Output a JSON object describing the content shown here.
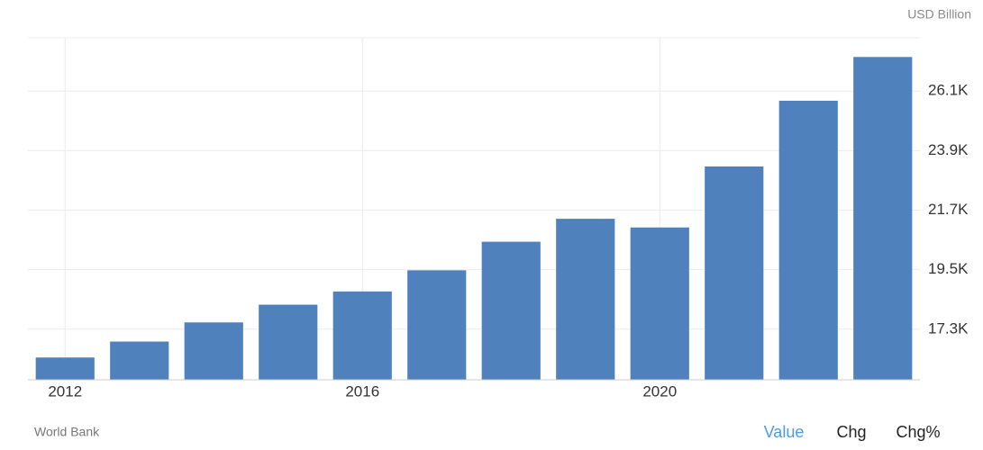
{
  "chart_data": {
    "type": "bar",
    "unit_label": "USD Billion",
    "source": "World Bank",
    "tabs": [
      "Value",
      "Chg",
      "Chg%"
    ],
    "categories": [
      "2012",
      null,
      null,
      null,
      "2016",
      null,
      null,
      null,
      "2020",
      null,
      null,
      null
    ],
    "values": [
      16254,
      16843,
      17551,
      18206,
      18695,
      19477,
      20533,
      21381,
      21060,
      23315,
      25744,
      27361
    ],
    "color": "#4f81bd",
    "ylim": [
      15430,
      28070
    ],
    "yticks": [
      {
        "value": 17300,
        "label": "17.3K"
      },
      {
        "value": 19500,
        "label": "19.5K"
      },
      {
        "value": 21700,
        "label": "21.7K"
      },
      {
        "value": 23900,
        "label": "23.9K"
      },
      {
        "value": 26100,
        "label": "26.1K"
      }
    ],
    "grid": true
  }
}
